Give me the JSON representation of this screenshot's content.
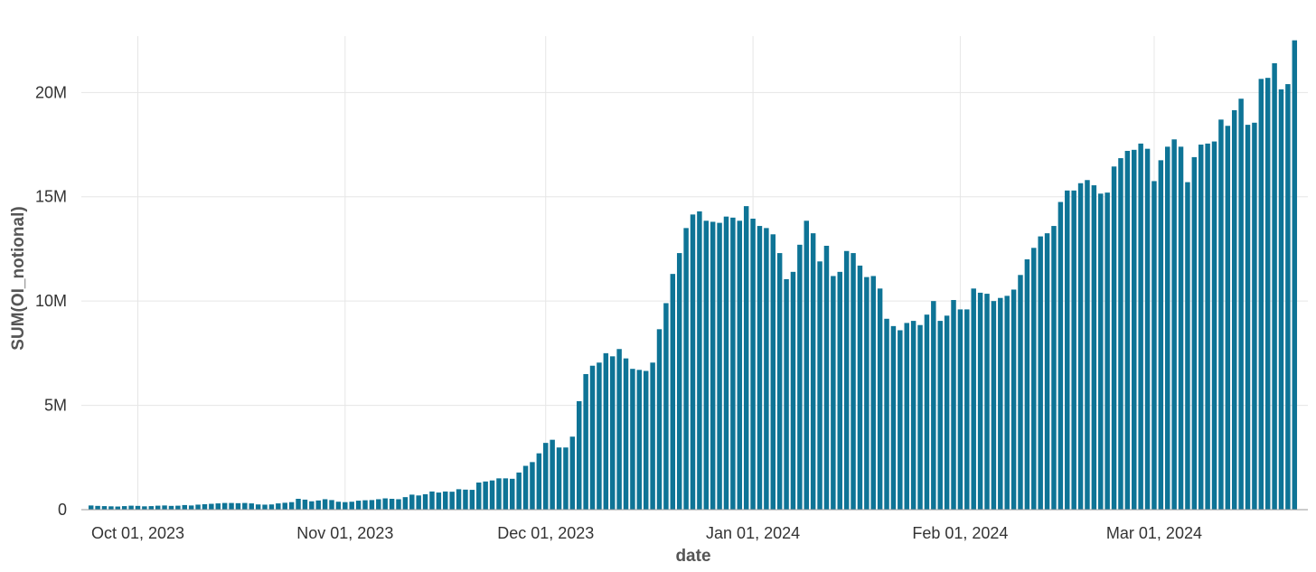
{
  "chart_data": {
    "type": "bar",
    "xlabel": "date",
    "ylabel": "SUM(OI_notional)",
    "x_axis": {
      "ticks": [
        {
          "date": "2023-10-01",
          "label": "Oct 01, 2023"
        },
        {
          "date": "2023-11-01",
          "label": "Nov 01, 2023"
        },
        {
          "date": "2023-12-01",
          "label": "Dec 01, 2023"
        },
        {
          "date": "2024-01-01",
          "label": "Jan 01, 2024"
        },
        {
          "date": "2024-02-01",
          "label": "Feb 01, 2024"
        },
        {
          "date": "2024-03-01",
          "label": "Mar 01, 2024"
        }
      ]
    },
    "y_axis": {
      "ylim": [
        0,
        22700000
      ],
      "ticks": [
        {
          "value": 0,
          "label": "0"
        },
        {
          "value": 5000000,
          "label": "5M"
        },
        {
          "value": 10000000,
          "label": "10M"
        },
        {
          "value": 15000000,
          "label": "15M"
        },
        {
          "value": 20000000,
          "label": "20M"
        }
      ]
    },
    "grid": true,
    "bar_color": "#0e7496",
    "series": [
      {
        "start_date": "2023-09-24",
        "values": [
          200000,
          180000,
          170000,
          160000,
          150000,
          170000,
          190000,
          180000,
          160000,
          170000,
          190000,
          200000,
          180000,
          190000,
          220000,
          200000,
          240000,
          260000,
          280000,
          300000,
          320000,
          320000,
          310000,
          320000,
          300000,
          250000,
          240000,
          250000,
          300000,
          330000,
          360000,
          520000,
          480000,
          400000,
          440000,
          500000,
          460000,
          380000,
          360000,
          380000,
          430000,
          450000,
          460000,
          500000,
          540000,
          520000,
          500000,
          600000,
          720000,
          680000,
          740000,
          870000,
          820000,
          870000,
          860000,
          980000,
          960000,
          950000,
          1300000,
          1350000,
          1400000,
          1500000,
          1500000,
          1480000,
          1780000,
          2100000,
          2280000,
          2700000,
          3200000,
          3350000,
          2980000,
          2980000,
          3500000,
          5200000,
          6500000,
          6900000,
          7050000,
          7500000,
          7350000,
          7700000,
          7250000,
          6750000,
          6700000,
          6650000,
          7050000,
          8650000,
          9900000,
          11300000,
          12300000,
          13500000,
          14150000,
          14300000,
          13850000,
          13800000,
          13750000,
          14050000,
          14000000,
          13850000,
          14550000,
          13950000,
          13600000,
          13500000,
          13200000,
          12300000,
          11050000,
          11400000,
          12700000,
          13850000,
          13250000,
          11900000,
          12650000,
          11200000,
          11400000,
          12400000,
          12300000,
          11700000,
          11150000,
          11200000,
          10600000,
          9150000,
          8800000,
          8600000,
          8950000,
          9050000,
          8850000,
          9350000,
          10000000,
          9050000,
          9300000,
          10050000,
          9600000,
          9600000,
          10600000,
          10400000,
          10350000,
          10000000,
          10150000,
          10250000,
          10550000,
          11250000,
          12000000,
          12550000,
          13100000,
          13250000,
          13600000,
          14750000,
          15300000,
          15300000,
          15650000,
          15800000,
          15550000,
          15150000,
          15200000,
          16450000,
          16850000,
          17200000,
          17250000,
          17550000,
          17300000,
          15750000,
          16750000,
          17400000,
          17750000,
          17400000,
          15700000,
          16900000,
          17500000,
          17550000,
          17650000,
          18700000,
          18400000,
          19150000,
          19700000,
          18450000,
          18550000,
          20650000,
          20700000,
          21400000,
          20150000,
          20400000,
          22500000
        ]
      }
    ]
  }
}
